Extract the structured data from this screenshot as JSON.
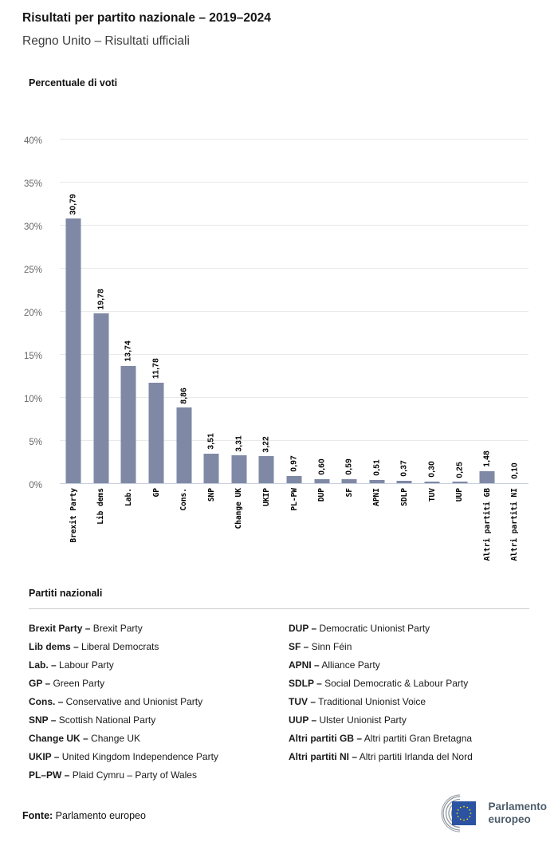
{
  "header": {
    "title": "Risultati per partito nazionale – 2019–2024",
    "subtitle": "Regno Unito – Risultati ufficiali"
  },
  "chart_data": {
    "type": "bar",
    "title": "Percentuale di voti",
    "categories": [
      "Brexit Party",
      "Lib dems",
      "Lab.",
      "GP",
      "Cons.",
      "SNP",
      "Change UK",
      "UKIP",
      "PL-PW",
      "DUP",
      "SF",
      "APNI",
      "SDLP",
      "TUV",
      "UUP",
      "Altri partiti GB",
      "Altri partiti NI"
    ],
    "values": [
      30.79,
      19.78,
      13.74,
      11.78,
      8.86,
      3.51,
      3.31,
      3.22,
      0.97,
      0.6,
      0.59,
      0.51,
      0.37,
      0.3,
      0.25,
      1.48,
      0.1
    ],
    "value_labels": [
      "30,79",
      "19,78",
      "13,74",
      "11,78",
      "8,86",
      "3,51",
      "3,31",
      "3,22",
      "0,97",
      "0,60",
      "0,59",
      "0,51",
      "0,37",
      "0,30",
      "0,25",
      "1,48",
      "0,10"
    ],
    "ylim": [
      0,
      40
    ],
    "ytick_values": [
      0,
      5,
      10,
      15,
      20,
      25,
      30,
      35,
      40
    ],
    "ytick_labels": [
      "0%",
      "5%",
      "10%",
      "15%",
      "20%",
      "25%",
      "30%",
      "35%",
      "40%"
    ],
    "grid": true,
    "legend_position": "none",
    "bar_color": "#7F89A5"
  },
  "legend": {
    "heading": "Partiti nazionali",
    "columns": [
      [
        {
          "abbr": "Brexit Party –",
          "name": "Brexit Party"
        },
        {
          "abbr": "Lib dems –",
          "name": "Liberal Democrats"
        },
        {
          "abbr": "Lab. –",
          "name": "Labour Party"
        },
        {
          "abbr": "GP –",
          "name": "Green Party"
        },
        {
          "abbr": "Cons. –",
          "name": "Conservative and Unionist Party"
        },
        {
          "abbr": "SNP –",
          "name": "Scottish National Party"
        },
        {
          "abbr": "Change UK –",
          "name": "Change UK"
        },
        {
          "abbr": "UKIP –",
          "name": "United Kingdom Independence Party"
        },
        {
          "abbr": "PL–PW –",
          "name": "Plaid Cymru – Party of Wales"
        }
      ],
      [
        {
          "abbr": "DUP –",
          "name": "Democratic Unionist Party"
        },
        {
          "abbr": "SF –",
          "name": "Sinn Féin"
        },
        {
          "abbr": "APNI –",
          "name": "Alliance Party"
        },
        {
          "abbr": "SDLP –",
          "name": "Social Democratic & Labour Party"
        },
        {
          "abbr": "TUV –",
          "name": "Traditional Unionist Voice"
        },
        {
          "abbr": "UUP –",
          "name": "Ulster Unionist Party"
        },
        {
          "abbr": "Altri partiti GB –",
          "name": "Altri partiti Gran Bretagna"
        },
        {
          "abbr": "Altri partiti NI –",
          "name": "Altri partiti Irlanda del Nord"
        }
      ]
    ]
  },
  "footer": {
    "source_label": "Fonte:",
    "source_value": "Parlamento europeo",
    "logo_line1": "Parlamento",
    "logo_line2": "europeo"
  },
  "colors": {
    "bar": "#7F89A5",
    "gridline": "#e9e9e9",
    "axis_line": "#c7d0df",
    "y_tick_text": "#666666",
    "eu_blue": "#2B53A1",
    "star_yellow": "#FFD617",
    "hemicycle_gray": "#8e979e",
    "logo_text": "#4d5d6b"
  }
}
